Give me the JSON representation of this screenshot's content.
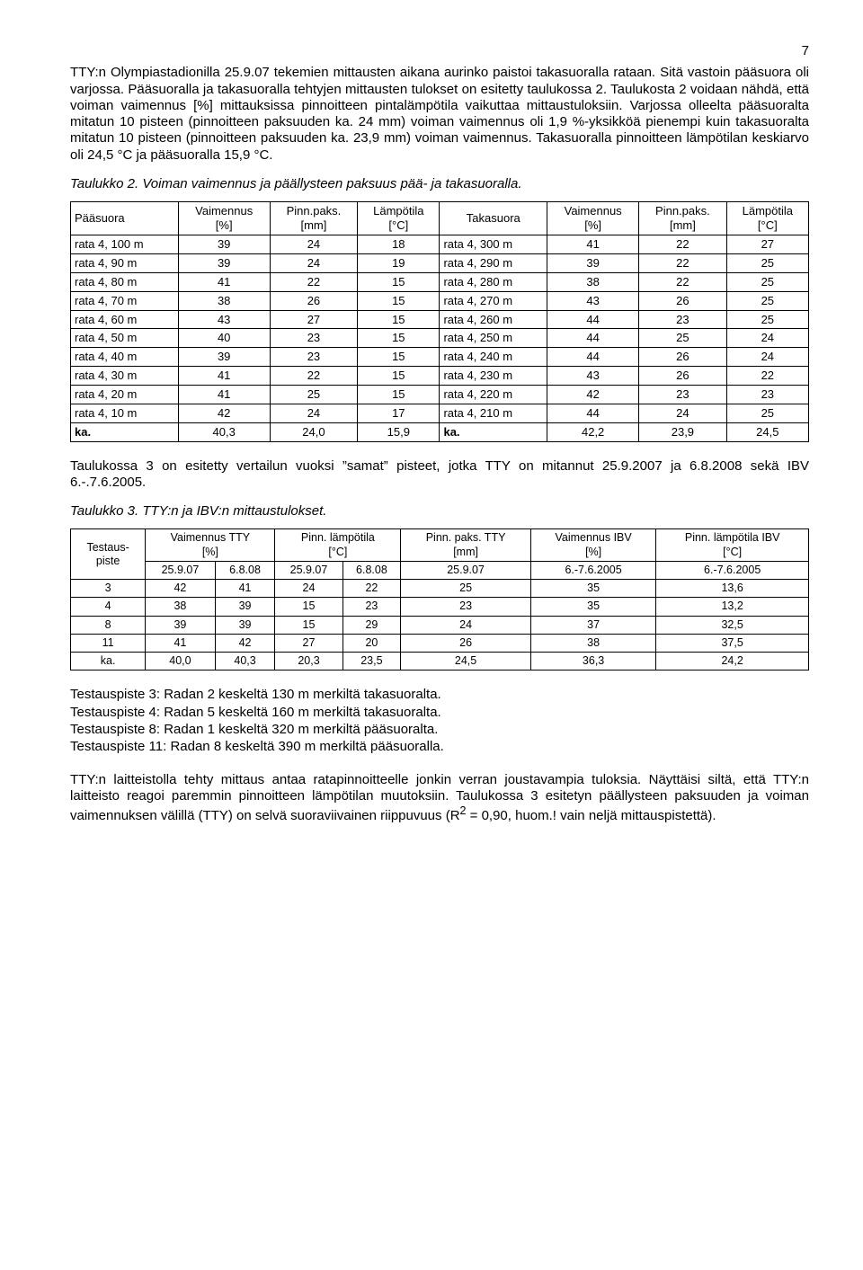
{
  "page_number": "7",
  "para1": "TTY:n Olympiastadionilla 25.9.07 tekemien mittausten aikana aurinko paistoi takasuoralla rataan. Sitä vastoin pääsuora oli varjossa. Pääsuoralla ja takasuoralla tehtyjen mittausten tulokset on esitetty taulukossa 2. Taulukosta 2 voidaan nähdä, että voiman vaimennus [%] mittauksissa pinnoitteen pintalämpötila vaikuttaa mittaustuloksiin. Varjossa olleelta pääsuoralta mitatun 10 pisteen (pinnoitteen paksuuden ka. 24 mm) voiman vaimennus oli 1,9 %-yksikköä pienempi kuin takasuoralta mitatun 10 pisteen (pinnoitteen paksuuden ka. 23,9 mm) voiman vaimennus. Takasuoralla pinnoitteen lämpötilan keskiarvo oli 24,5 °C ja pääsuoralla 15,9 °C.",
  "caption1": "Taulukko 2. Voiman vaimennus ja päällysteen paksuus pää- ja takasuoralla.",
  "table2": {
    "headers": [
      "Pääsuora",
      "Vaimennus\n[%]",
      "Pinn.paks.\n[mm]",
      "Lämpötila\n[°C]",
      "Takasuora",
      "Vaimennus\n[%]",
      "Pinn.paks.\n[mm]",
      "Lämpötila\n[°C]"
    ],
    "rows": [
      [
        "rata 4, 100 m",
        "39",
        "24",
        "18",
        "rata 4, 300 m",
        "41",
        "22",
        "27"
      ],
      [
        "rata 4, 90 m",
        "39",
        "24",
        "19",
        "rata 4, 290 m",
        "39",
        "22",
        "25"
      ],
      [
        "rata 4, 80 m",
        "41",
        "22",
        "15",
        "rata 4, 280 m",
        "38",
        "22",
        "25"
      ],
      [
        "rata 4, 70 m",
        "38",
        "26",
        "15",
        "rata 4, 270 m",
        "43",
        "26",
        "25"
      ],
      [
        "rata 4, 60 m",
        "43",
        "27",
        "15",
        "rata 4, 260 m",
        "44",
        "23",
        "25"
      ],
      [
        "rata 4, 50 m",
        "40",
        "23",
        "15",
        "rata 4, 250 m",
        "44",
        "25",
        "24"
      ],
      [
        "rata 4, 40 m",
        "39",
        "23",
        "15",
        "rata 4, 240 m",
        "44",
        "26",
        "24"
      ],
      [
        "rata 4, 30 m",
        "41",
        "22",
        "15",
        "rata 4, 230 m",
        "43",
        "26",
        "22"
      ],
      [
        "rata 4, 20 m",
        "41",
        "25",
        "15",
        "rata 4, 220 m",
        "42",
        "23",
        "23"
      ],
      [
        "rata 4, 10 m",
        "42",
        "24",
        "17",
        "rata 4, 210 m",
        "44",
        "24",
        "25"
      ],
      [
        "ka.",
        "40,3",
        "24,0",
        "15,9",
        "ka.",
        "42,2",
        "23,9",
        "24,5"
      ]
    ]
  },
  "para2": "Taulukossa 3 on esitetty vertailun vuoksi ”samat” pisteet, jotka TTY on mitannut 25.9.2007 ja 6.8.2008 sekä IBV 6.-.7.6.2005.",
  "caption2": "Taulukko 3. TTY:n ja IBV:n  mittaustulokset.",
  "table3": {
    "header_row1": [
      "Testaus-\npiste",
      "Vaimennus TTY\n[%]",
      "Pinn. lämpötila\n[°C]",
      "Pinn. paks. TTY\n[mm]",
      "Vaimennus IBV\n[%]",
      "Pinn. lämpötila IBV\n[°C]"
    ],
    "header_row2": [
      "25.9.07",
      "6.8.08",
      "25.9.07",
      "6.8.08",
      "25.9.07",
      "6.-7.6.2005",
      "6.-7.6.2005"
    ],
    "rows": [
      [
        "3",
        "42",
        "41",
        "24",
        "22",
        "25",
        "35",
        "13,6"
      ],
      [
        "4",
        "38",
        "39",
        "15",
        "23",
        "23",
        "35",
        "13,2"
      ],
      [
        "8",
        "39",
        "39",
        "15",
        "29",
        "24",
        "37",
        "32,5"
      ],
      [
        "11",
        "41",
        "42",
        "27",
        "20",
        "26",
        "38",
        "37,5"
      ],
      [
        "ka.",
        "40,0",
        "40,3",
        "20,3",
        "23,5",
        "24,5",
        "36,3",
        "24,2"
      ]
    ]
  },
  "notes": [
    "Testauspiste 3: Radan 2 keskeltä 130 m merkiltä takasuoralta.",
    "Testauspiste 4: Radan 5 keskeltä 160 m merkiltä takasuoralta.",
    "Testauspiste 8: Radan 1 keskeltä 320 m merkiltä pääsuoralta.",
    "Testauspiste 11: Radan 8 keskeltä 390 m merkiltä pääsuoralla."
  ],
  "para3_part1": "TTY:n laitteistolla tehty mittaus antaa ratapinnoitteelle jonkin verran joustavampia tuloksia. Näyttäisi siltä, että TTY:n laitteisto reagoi paremmin pinnoitteen lämpötilan muutoksiin. Taulukossa 3 esitetyn päällysteen paksuuden ja voiman vaimennuksen välillä (TTY) on selvä suoraviivainen riippuvuus (R",
  "para3_sup": "2",
  "para3_part2": " = 0,90, huom.! vain neljä mittauspistettä)."
}
